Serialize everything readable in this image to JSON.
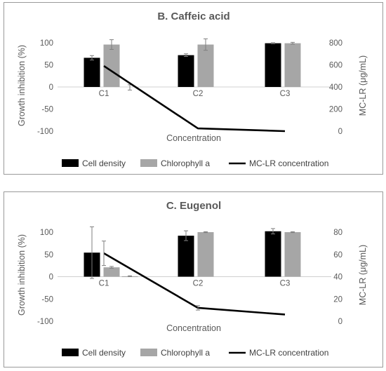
{
  "colors": {
    "cell_density": "#000000",
    "chlorophyll": "#a6a6a6",
    "mc_lr": "#000000",
    "errorbar": "#7f7f7f",
    "text": "#595959",
    "gridline": "#d0d0d0"
  },
  "chart_data": [
    {
      "type": "bar",
      "title": "B. Caffeic acid",
      "categories": [
        "C1",
        "C2",
        "C3"
      ],
      "xlabel": "Concentration",
      "ylabel": "Growth inhibition (%)",
      "y2label": "MC-LR (μg/mL)",
      "ylim": [
        -100,
        100
      ],
      "yticks": [
        -100,
        -50,
        0,
        50,
        100
      ],
      "y2lim": [
        0,
        800
      ],
      "y2ticks": [
        0,
        200,
        400,
        600,
        800
      ],
      "series": [
        {
          "name": "Cell density",
          "axis": "left",
          "kind": "bar",
          "values": [
            66,
            72,
            99
          ],
          "errors": [
            5,
            3,
            1
          ]
        },
        {
          "name": "Chlorophyll a",
          "axis": "left",
          "kind": "bar",
          "values": [
            96,
            96,
            99
          ],
          "errors": [
            11,
            13,
            2
          ]
        },
        {
          "name": "",
          "axis": "left",
          "kind": "marker",
          "values": [
            -1,
            null,
            null
          ],
          "errors": [
            6,
            null,
            null
          ]
        },
        {
          "name": "MC-LR concentration",
          "axis": "right",
          "kind": "line",
          "values": [
            590,
            25,
            0
          ]
        }
      ],
      "legend": {
        "position": "bottom",
        "items": [
          "Cell density",
          "Chlorophyll a",
          "MC-LR concentration"
        ]
      },
      "grid": false
    },
    {
      "type": "bar",
      "title": "C. Eugenol",
      "categories": [
        "C1",
        "C2",
        "C3"
      ],
      "xlabel": "Concentration",
      "ylabel": "Growth inhibition (%)",
      "y2label": "MC-LR (μg/mL)",
      "ylim": [
        -100,
        100
      ],
      "yticks": [
        -100,
        -50,
        0,
        50,
        100
      ],
      "y2lim": [
        0,
        80
      ],
      "y2ticks": [
        0,
        20,
        40,
        60,
        80
      ],
      "series": [
        {
          "name": "Cell density",
          "axis": "left",
          "kind": "bar",
          "values": [
            54,
            92,
            102
          ],
          "errors": [
            58,
            11,
            6
          ]
        },
        {
          "name": "Chlorophyll a",
          "axis": "left",
          "kind": "bar",
          "values": [
            21,
            100,
            100
          ],
          "errors": [
            2,
            1,
            1
          ]
        },
        {
          "name": "",
          "axis": "left",
          "kind": "bar",
          "values": [
            1,
            null,
            null
          ],
          "errors": [
            1,
            null,
            null
          ]
        },
        {
          "name": "MC-LR concentration",
          "axis": "right",
          "kind": "line",
          "values": [
            61,
            12,
            6
          ],
          "errors": [
            11,
            2,
            0
          ]
        }
      ],
      "legend": {
        "position": "bottom",
        "items": [
          "Cell density",
          "Chlorophyll a",
          "MC-LR concentration"
        ]
      },
      "grid": false
    }
  ]
}
